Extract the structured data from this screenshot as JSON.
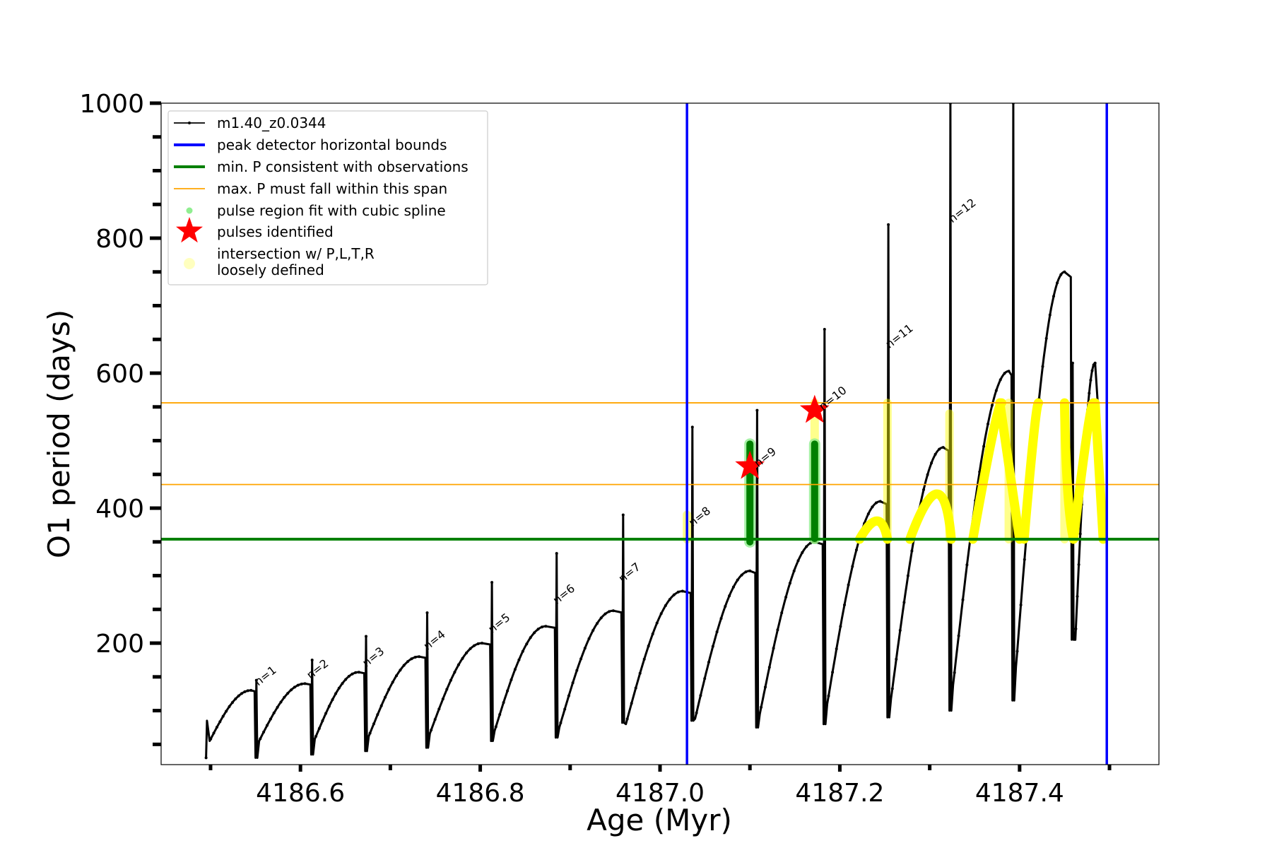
{
  "chart_data": {
    "type": "line",
    "title": "",
    "xlabel": "Age (Myr)",
    "ylabel": "O1 period (days)",
    "xlim": [
      4186.445,
      4187.555
    ],
    "ylim": [
      20,
      1000
    ],
    "x_ticks": [
      4186.6,
      4186.8,
      4187.0,
      4187.2,
      4187.4
    ],
    "x_tick_labels": [
      "4186.6",
      "4186.8",
      "4187.0",
      "4187.2",
      "4187.4"
    ],
    "y_ticks": [
      200,
      400,
      600,
      800,
      1000
    ],
    "y_tick_labels": [
      "200",
      "400",
      "600",
      "800",
      "1000"
    ],
    "grid": false,
    "legend_position": "upper-left",
    "series": [
      {
        "name": "m1.40_z0.0344",
        "color": "#000000",
        "style": "line-with-dots",
        "pulses": [
          {
            "t0": 4186.495,
            "p_start": 55,
            "t_peak": 4186.545,
            "p_peak": 130,
            "spike": 135,
            "dip": 30
          },
          {
            "t0": 4186.55,
            "p_start": 55,
            "t_peak": 4186.605,
            "p_peak": 140,
            "spike": 145,
            "dip": 30
          },
          {
            "t0": 4186.612,
            "p_start": 58,
            "t_peak": 4186.665,
            "p_peak": 157,
            "spike": 175,
            "dip": 35
          },
          {
            "t0": 4186.672,
            "p_start": 62,
            "t_peak": 4186.732,
            "p_peak": 180,
            "spike": 210,
            "dip": 40
          },
          {
            "t0": 4186.74,
            "p_start": 66,
            "t_peak": 4186.802,
            "p_peak": 200,
            "spike": 245,
            "dip": 45
          },
          {
            "t0": 4186.812,
            "p_start": 70,
            "t_peak": 4186.873,
            "p_peak": 225,
            "spike": 290,
            "dip": 55
          },
          {
            "t0": 4186.884,
            "p_start": 75,
            "t_peak": 4186.948,
            "p_peak": 248,
            "spike": 333,
            "dip": 60
          },
          {
            "t0": 4186.958,
            "p_start": 80,
            "t_peak": 4187.025,
            "p_peak": 277,
            "spike": 390,
            "dip": 82
          },
          {
            "t0": 4187.035,
            "p_start": 88,
            "t_peak": 4187.1,
            "p_peak": 307,
            "spike": 520,
            "dip": 85
          },
          {
            "t0": 4187.107,
            "p_start": 95,
            "t_peak": 4187.172,
            "p_peak": 350,
            "spike": 545,
            "dip": 75
          },
          {
            "t0": 4187.182,
            "p_start": 110,
            "t_peak": 4187.245,
            "p_peak": 410,
            "spike": 665,
            "dip": 80
          },
          {
            "t0": 4187.253,
            "p_start": 118,
            "t_peak": 4187.315,
            "p_peak": 490,
            "spike": 820,
            "dip": 90
          },
          {
            "t0": 4187.322,
            "p_start": 138,
            "t_peak": 4187.388,
            "p_peak": 603,
            "spike": 1000,
            "dip": 100
          },
          {
            "t0": 4187.392,
            "p_start": 165,
            "t_peak": 4187.45,
            "p_peak": 750,
            "spike": 1000,
            "dip": 115
          },
          {
            "t0": 4187.458,
            "p_start": 205,
            "t_peak": 4187.484,
            "p_peak": 615,
            "spike": 615,
            "dip": 205
          }
        ],
        "end": {
          "t": 4187.497,
          "p": 350
        }
      }
    ],
    "peak_detector_bounds": {
      "name": "peak detector horizontal bounds",
      "color": "#0000ff",
      "x": [
        4187.03,
        4187.497
      ]
    },
    "min_period": {
      "name": "min. P consistent with observations",
      "color": "#008000",
      "y": 354
    },
    "max_period_span": {
      "name": "max. P must fall within this span",
      "color": "#ffa500",
      "y": [
        435,
        556
      ]
    },
    "spline_region_label": "pulse region fit with cubic spline",
    "spline_region_color": "#90ee90",
    "spline_fits": [
      {
        "x": 4187.1,
        "y_min": 350,
        "y_max": 495
      },
      {
        "x": 4187.172,
        "y_min": 355,
        "y_max": 495
      }
    ],
    "spline_fit_color": "#008000",
    "pulses_identified": {
      "name": "pulses identified",
      "color": "#ff0000",
      "points": [
        {
          "x": 4187.1,
          "y": 462
        },
        {
          "x": 4187.172,
          "y": 545
        }
      ]
    },
    "intersection": {
      "name": "intersection w/ P,L,T,R\nloosely defined",
      "name_lines": [
        "intersection w/ P,L,T,R",
        "loosely defined"
      ],
      "color": "#ffff00",
      "arcs": [
        {
          "x0": 4187.222,
          "y0": 354,
          "x1": 4187.245,
          "y1": 408,
          "x2": 4187.253,
          "y2": 354
        },
        {
          "x0": 4187.278,
          "y0": 354,
          "x1": 4187.315,
          "y1": 488,
          "x2": 4187.324,
          "y2": 354
        },
        {
          "x0": 4187.348,
          "y0": 354,
          "x1": 4187.375,
          "y1": 556,
          "x2": 4187.38,
          "y2": 556
        },
        {
          "x0": 4187.378,
          "y0": 556,
          "x1": 4187.386,
          "y1": 480,
          "x2": 4187.4,
          "y2": 354
        },
        {
          "x0": 4187.405,
          "y0": 354,
          "x1": 4187.418,
          "y1": 556,
          "x2": 4187.421,
          "y2": 556
        },
        {
          "x0": 4187.45,
          "y0": 556,
          "x1": 4187.452,
          "y1": 400,
          "x2": 4187.46,
          "y2": 354
        },
        {
          "x0": 4187.46,
          "y0": 354,
          "x1": 4187.478,
          "y1": 556,
          "x2": 4187.482,
          "y2": 556
        },
        {
          "x0": 4187.484,
          "y0": 556,
          "x1": 4187.49,
          "y1": 420,
          "x2": 4187.493,
          "y2": 354
        }
      ],
      "columns": [
        {
          "x": 4187.03,
          "y_min": 354,
          "y_max": 390
        },
        {
          "x": 4187.172,
          "y_min": 354,
          "y_max": 556
        },
        {
          "x": 4187.253,
          "y_min": 354,
          "y_max": 556
        },
        {
          "x": 4187.322,
          "y_min": 354,
          "y_max": 540
        },
        {
          "x": 4187.388,
          "y_min": 354,
          "y_max": 556
        },
        {
          "x": 4187.45,
          "y_min": 354,
          "y_max": 556
        }
      ]
    },
    "annotations": [
      {
        "text": "n=1",
        "x": 4186.55,
        "y": 132
      },
      {
        "text": "n=2",
        "x": 4186.608,
        "y": 142
      },
      {
        "text": "n=3",
        "x": 4186.67,
        "y": 160
      },
      {
        "text": "n=4",
        "x": 4186.738,
        "y": 185
      },
      {
        "text": "n=5",
        "x": 4186.81,
        "y": 210
      },
      {
        "text": "n=6",
        "x": 4186.882,
        "y": 253
      },
      {
        "text": "n=7",
        "x": 4186.955,
        "y": 285
      },
      {
        "text": "n=8",
        "x": 4187.033,
        "y": 368
      },
      {
        "text": "n=9",
        "x": 4187.106,
        "y": 456
      },
      {
        "text": "n=10",
        "x": 4187.178,
        "y": 540
      },
      {
        "text": "n=11",
        "x": 4187.252,
        "y": 632
      },
      {
        "text": "n=12",
        "x": 4187.322,
        "y": 818
      }
    ]
  }
}
